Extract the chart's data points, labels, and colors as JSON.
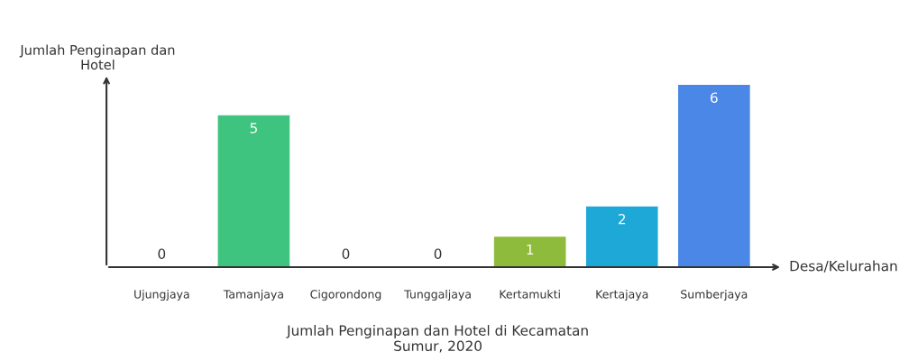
{
  "chart_data": {
    "type": "bar",
    "title": "Jumlah Penginapan dan Hotel di Kecamatan\nSumur, 2020",
    "xlabel": "Desa/Kelurahan",
    "ylabel": "Jumlah Penginapan dan\nHotel",
    "categories": [
      "Ujungjaya",
      "Tamanjaya",
      "Cigorondong",
      "Tunggaljaya",
      "Kertamukti",
      "Kertajaya",
      "Sumberjaya"
    ],
    "values": [
      0,
      5,
      0,
      0,
      1,
      2,
      6
    ],
    "colors": [
      "#3ec47f",
      "#3ec47f",
      "#3ec47f",
      "#8fbb3c",
      "#8fbb3c",
      "#1ea8d8",
      "#4a87e6"
    ],
    "data_labels": true,
    "grid": false,
    "legend": false
  }
}
